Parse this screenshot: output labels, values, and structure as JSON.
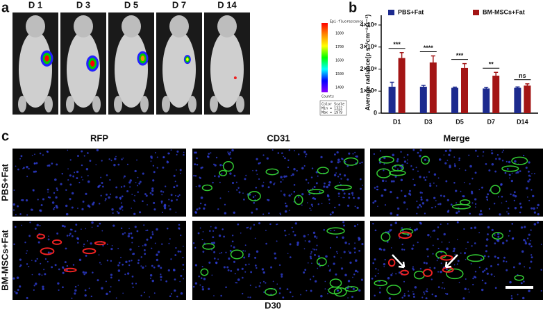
{
  "panel_a": {
    "label": "a",
    "days": [
      "D 1",
      "D 3",
      "D 5",
      "D 7",
      "D 14"
    ],
    "colorbar": {
      "title": "Epi-fluorescence",
      "ticks": [
        "1800",
        "1700",
        "1600",
        "1500",
        "1400"
      ],
      "unit": "Counts",
      "scale_label": "Color Scale",
      "min_label": "Min = 1322",
      "max_label": "Max = 1979"
    }
  },
  "panel_b_label": "b",
  "chart_data": {
    "type": "bar",
    "y_label": "Average radiance(p s⁻¹cm⁻²sr⁻¹)",
    "categories": [
      "D1",
      "D3",
      "D5",
      "D7",
      "D14"
    ],
    "series": [
      {
        "name": "PBS+Fat",
        "color": "#1c2a8e",
        "values": [
          120000000,
          120000000,
          115000000,
          112000000,
          115000000
        ],
        "errors": [
          20000000,
          6000000,
          3000000,
          5000000,
          4000000
        ]
      },
      {
        "name": "BM-MSCs+Fat",
        "color": "#a31515",
        "values": [
          250000000,
          230000000,
          205000000,
          170000000,
          125000000
        ],
        "errors": [
          25000000,
          30000000,
          20000000,
          15000000,
          8000000
        ]
      }
    ],
    "annotations": [
      "***",
      "****",
      "***",
      "**",
      "ns"
    ],
    "ylim": [
      0,
      400000000
    ],
    "yticks": [
      0,
      {
        "value": 100000000,
        "label": "1×10⁸"
      },
      {
        "value": 200000000,
        "label": "2×10⁸"
      },
      {
        "value": 300000000,
        "label": "3×10⁸"
      },
      {
        "value": 400000000,
        "label": "4×10⁸"
      }
    ],
    "legend": "top"
  },
  "panel_c": {
    "label": "c",
    "columns": [
      "RFP",
      "CD31",
      "Merge"
    ],
    "rows": [
      "PBS+Fat",
      "BM-MSCs+Fat"
    ],
    "footer": "D30"
  }
}
